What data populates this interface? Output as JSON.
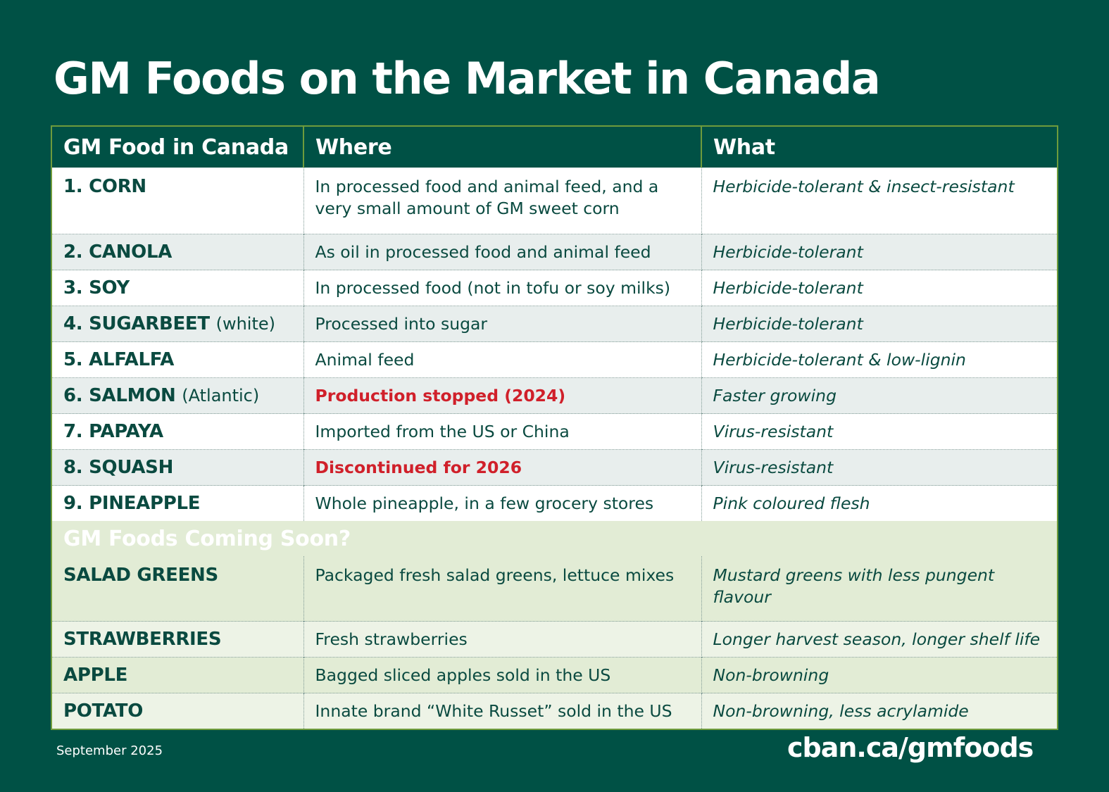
{
  "title": "GM Foods on the Market in Canada",
  "headers": [
    "GM Food in Canada",
    "Where",
    "What"
  ],
  "market": [
    {
      "food": "1. CORN",
      "qualifier": "",
      "where": "In processed food and animal feed, and a very small amount of GM sweet corn",
      "what": "Herbicide-tolerant & insect-resistant"
    },
    {
      "food": "2. CANOLA",
      "qualifier": "",
      "where": "As oil in processed food and animal feed",
      "what": "Herbicide-tolerant"
    },
    {
      "food": "3. SOY",
      "qualifier": "",
      "where": "In processed food (not in tofu or soy milks)",
      "what": "Herbicide-tolerant"
    },
    {
      "food": "4. SUGARBEET",
      "qualifier": "(white)",
      "where": "Processed into sugar",
      "what": "Herbicide-tolerant"
    },
    {
      "food": "5. ALFALFA",
      "qualifier": "",
      "where": "Animal feed",
      "what": "Herbicide-tolerant & low-lignin"
    },
    {
      "food": "6. SALMON",
      "qualifier": "(Atlantic)",
      "where": "Production stopped (2024)",
      "what": "Faster growing"
    },
    {
      "food": "7. PAPAYA",
      "qualifier": "",
      "where": "Imported from the US or China",
      "what": "Virus-resistant"
    },
    {
      "food": "8. SQUASH",
      "qualifier": "",
      "where": "Discontinued for 2026",
      "what": "Virus-resistant"
    },
    {
      "food": "9. PINEAPPLE",
      "qualifier": "",
      "where": "Whole pineapple, in a few grocery stores",
      "what": "Pink coloured flesh"
    }
  ],
  "coming_soon_title": "GM Foods Coming Soon?",
  "coming_soon": [
    {
      "food": "SALAD GREENS",
      "where": "Packaged fresh salad greens, lettuce mixes",
      "what": "Mustard greens with less pungent flavour"
    },
    {
      "food": "STRAWBERRIES",
      "where": "Fresh strawberries",
      "what": "Longer harvest season, longer shelf life"
    },
    {
      "food": "APPLE",
      "where": "Bagged sliced apples sold in the US",
      "what": "Non-browning"
    },
    {
      "food": "POTATO",
      "where": "Innate brand “White Russet” sold in the US",
      "what": "Non-browning, less acrylamide"
    }
  ],
  "footer": {
    "date": "September 2025",
    "url": "cban.ca/gmfoods"
  },
  "colors": {
    "background": "#005145",
    "alert_red": "#d0202a",
    "border_green": "#6f9b3c"
  }
}
